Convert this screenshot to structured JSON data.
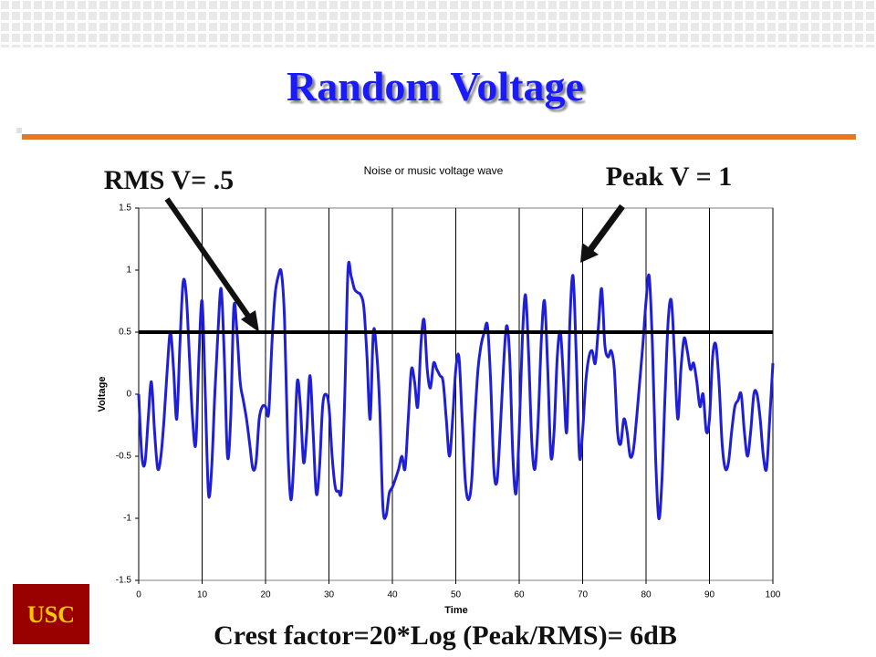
{
  "slide": {
    "title": "Random Voltage",
    "rms_note": "RMS V= .5",
    "peak_note": "Peak V = 1",
    "footer": "Crest factor=20*Log (Peak/RMS)= 6dB",
    "logo": "USC"
  },
  "chart_data": {
    "type": "line",
    "title": "Noise or music voltage wave",
    "x_label": "Time",
    "y_label": "Voltage",
    "xlim": [
      0,
      100
    ],
    "xticks": [
      0,
      10,
      20,
      30,
      40,
      50,
      60,
      70,
      80,
      90,
      100
    ],
    "ylim": [
      -1.5,
      1.5
    ],
    "yticks": [
      1.5,
      1,
      0.5,
      0,
      -0.5,
      -1,
      -1.5
    ],
    "grid": true,
    "reference_line": {
      "value": 0.5,
      "color": "#000000"
    },
    "x": [
      0,
      0.5,
      1,
      1.5,
      2,
      2.5,
      3,
      3.5,
      4,
      4.5,
      5,
      5.5,
      6,
      6.5,
      7,
      7.5,
      8,
      8.5,
      9,
      9.5,
      10,
      10.5,
      11,
      11.5,
      12,
      12.5,
      13,
      13.5,
      14,
      14.5,
      15,
      15.5,
      16,
      16.5,
      17,
      17.5,
      18,
      18.5,
      19,
      19.5,
      20,
      20.5,
      21,
      21.5,
      22,
      22.5,
      23,
      23.5,
      24,
      24.5,
      25,
      25.5,
      26,
      26.5,
      27,
      27.5,
      28,
      28.5,
      29,
      29.5,
      30,
      30.5,
      31,
      31.5,
      32,
      32.5,
      33,
      33.5,
      34,
      34.5,
      35,
      35.5,
      36,
      36.5,
      37,
      37.5,
      38,
      38.5,
      39,
      39.5,
      40,
      40.5,
      41,
      41.5,
      42,
      42.5,
      43,
      43.5,
      44,
      44.5,
      45,
      45.5,
      46,
      46.5,
      47,
      47.5,
      48,
      48.5,
      49,
      49.5,
      50,
      50.5,
      51,
      51.5,
      52,
      52.5,
      53,
      53.5,
      54,
      54.5,
      55,
      55.5,
      56,
      56.5,
      57,
      57.5,
      58,
      58.5,
      59,
      59.5,
      60,
      60.5,
      61,
      61.5,
      62,
      62.5,
      63,
      63.5,
      64,
      64.5,
      65,
      65.5,
      66,
      66.5,
      67,
      67.5,
      68,
      68.5,
      69,
      69.5,
      70,
      70.5,
      71,
      71.5,
      72,
      72.5,
      73,
      73.5,
      74,
      74.5,
      75,
      75.5,
      76,
      76.5,
      77,
      77.5,
      78,
      78.5,
      79,
      79.5,
      80,
      80.5,
      81,
      81.5,
      82,
      82.5,
      83,
      83.5,
      84,
      84.5,
      85,
      85.5,
      86,
      86.5,
      87,
      87.5,
      88,
      88.5,
      89,
      89.5,
      90,
      90.5,
      91,
      91.5,
      92,
      92.5,
      93,
      93.5,
      94,
      94.5,
      95,
      95.5,
      96,
      96.5,
      97,
      97.5,
      98,
      98.5,
      99,
      99.5,
      100
    ],
    "series": [
      {
        "color": "#1f1fd6",
        "values": [
          0,
          -0.5,
          -0.55,
          -0.2,
          0.1,
          -0.3,
          -0.6,
          -0.5,
          -0.2,
          0.2,
          0.5,
          0.2,
          -0.2,
          0.4,
          0.9,
          0.8,
          0.3,
          -0.2,
          -0.4,
          0.3,
          0.75,
          0,
          -0.8,
          -0.6,
          0,
          0.5,
          0.85,
          0.3,
          -0.5,
          -0.2,
          0.7,
          0.5,
          0.1,
          -0.05,
          -0.2,
          -0.4,
          -0.6,
          -0.55,
          -0.2,
          -0.1,
          -0.1,
          -0.15,
          0.4,
          0.8,
          0.95,
          0.98,
          0.6,
          -0.4,
          -0.85,
          -0.5,
          0.1,
          -0.1,
          -0.55,
          -0.3,
          0.15,
          -0.3,
          -0.8,
          -0.6,
          -0.1,
          0,
          -0.1,
          -0.5,
          -0.75,
          -0.78,
          -0.75,
          0,
          1,
          0.95,
          0.85,
          0.82,
          0.8,
          0.7,
          0.3,
          -0.2,
          0.5,
          0.35,
          -0.1,
          -0.9,
          -0.98,
          -0.8,
          -0.75,
          -0.68,
          -0.6,
          -0.5,
          -0.6,
          -0.2,
          0.2,
          0.1,
          -0.1,
          0.4,
          0.6,
          0.2,
          0.05,
          0.25,
          0.2,
          0.15,
          0.1,
          -0.2,
          -0.5,
          -0.2,
          0.2,
          0.3,
          -0.2,
          -0.7,
          -0.85,
          -0.7,
          -0.2,
          0.2,
          0.4,
          0.5,
          0.55,
          0.1,
          -0.6,
          -0.7,
          -0.3,
          0.2,
          0.55,
          0.3,
          -0.5,
          -0.8,
          -0.3,
          0.45,
          0.8,
          0.3,
          -0.4,
          -0.6,
          -0.2,
          0.45,
          0.75,
          0.2,
          -0.5,
          -0.3,
          0.3,
          0.5,
          0.1,
          -0.3,
          0.6,
          0.95,
          0.3,
          -0.5,
          -0.3,
          0.1,
          0.3,
          0.35,
          0.25,
          0.55,
          0.85,
          0.4,
          0.3,
          0.35,
          0.2,
          -0.3,
          -0.4,
          -0.2,
          -0.3,
          -0.5,
          -0.45,
          -0.2,
          0.1,
          0.4,
          0.75,
          0.95,
          0.4,
          -0.5,
          -1,
          -0.7,
          0,
          0.6,
          0.75,
          0.3,
          -0.2,
          0.2,
          0.45,
          0.35,
          0.2,
          0.25,
          0.1,
          -0.1,
          0,
          -0.3,
          -0.2,
          0.3,
          0.4,
          0.1,
          -0.4,
          -0.6,
          -0.55,
          -0.3,
          -0.1,
          -0.05,
          0,
          -0.3,
          -0.5,
          -0.3,
          0,
          0,
          -0.2,
          -0.5,
          -0.6,
          -0.2,
          0.25
        ]
      }
    ]
  }
}
